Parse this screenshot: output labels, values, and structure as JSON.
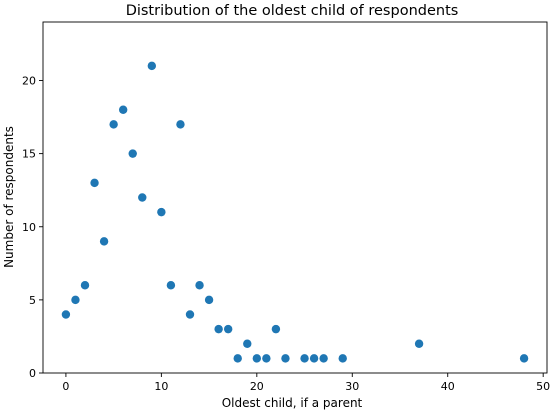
{
  "chart_data": {
    "type": "scatter",
    "title": "Distribution of the oldest child of respondents",
    "xlabel": "Oldest child, if a parent",
    "ylabel": "Number of respondents",
    "xlim": [
      -2.4,
      50.4
    ],
    "ylim": [
      0,
      24
    ],
    "x_ticks": [
      0,
      10,
      20,
      30,
      40,
      50
    ],
    "y_ticks": [
      0,
      5,
      10,
      15,
      20
    ],
    "grid": false,
    "marker_color": "#1f77b4",
    "x": [
      0,
      1,
      2,
      3,
      4,
      5,
      6,
      7,
      8,
      9,
      10,
      11,
      12,
      13,
      14,
      15,
      16,
      17,
      18,
      19,
      20,
      21,
      22,
      23,
      25,
      26,
      27,
      29,
      37,
      48
    ],
    "y": [
      4,
      5,
      6,
      13,
      9,
      17,
      18,
      15,
      12,
      21,
      11,
      6,
      17,
      4,
      6,
      5,
      3,
      3,
      1,
      2,
      1,
      1,
      3,
      1,
      1,
      1,
      1,
      1,
      2,
      1
    ]
  }
}
